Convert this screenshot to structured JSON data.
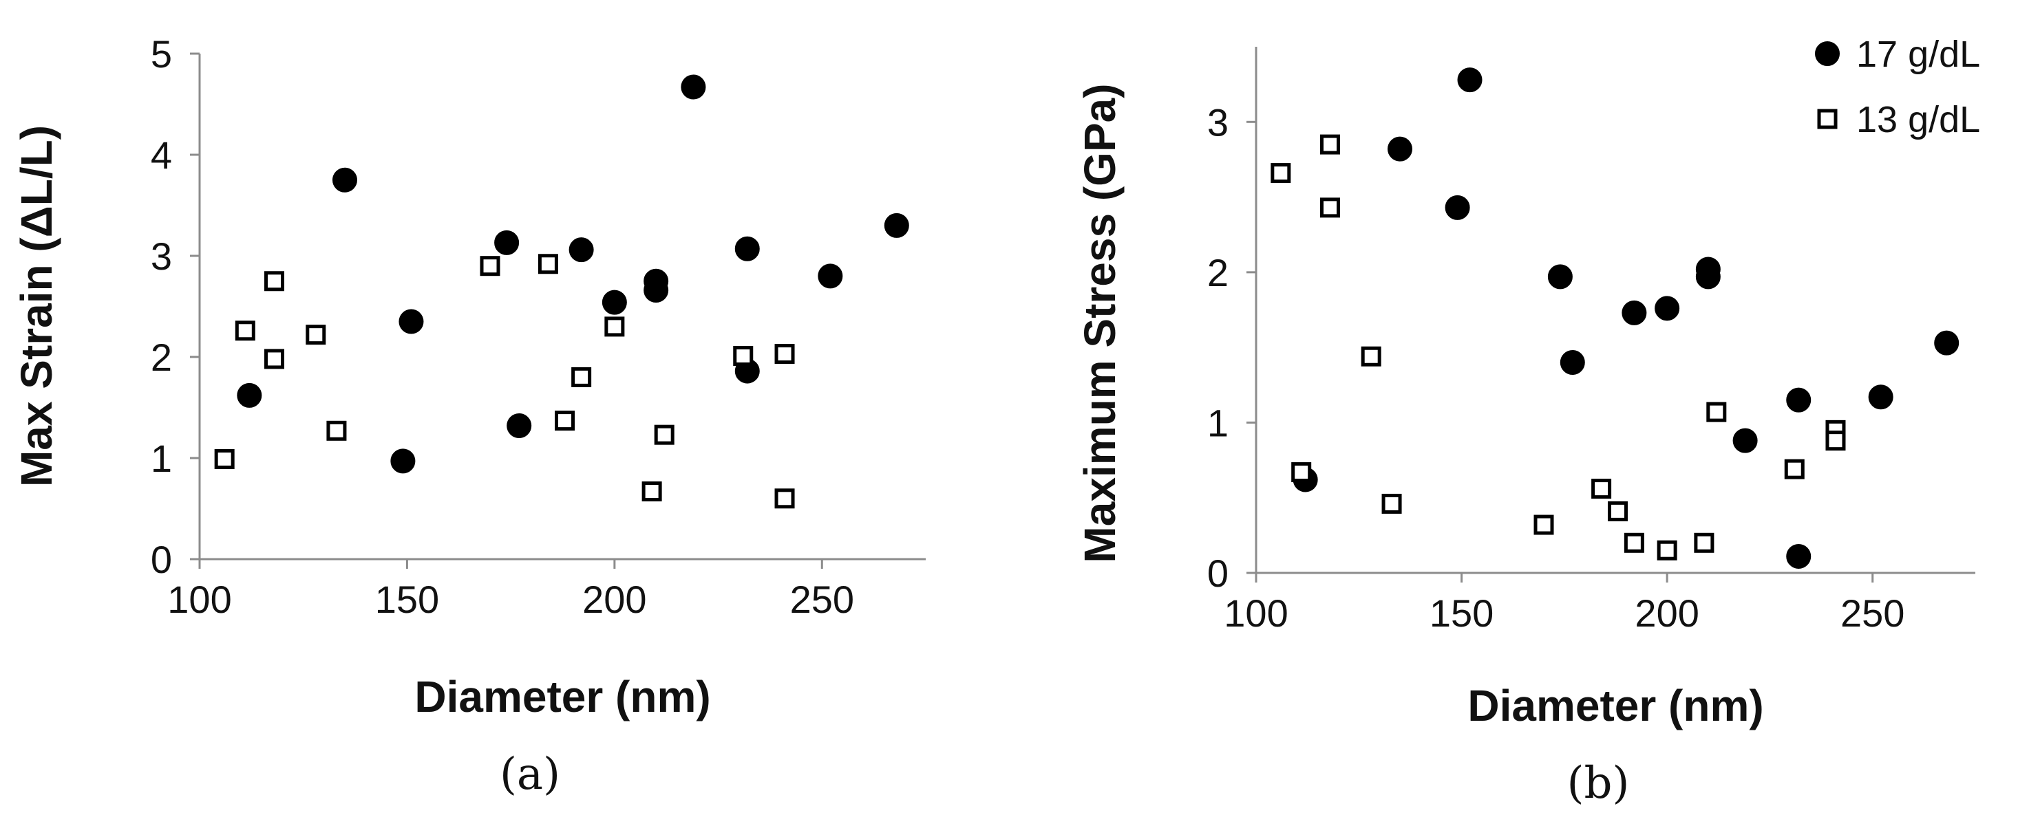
{
  "chart_data": [
    {
      "type": "scatter",
      "xlabel": "Diameter (nm)",
      "ylabel": "Max Strain (ΔL/L)",
      "caption": "(a)",
      "xlim": [
        100,
        275
      ],
      "ylim": [
        0,
        5
      ],
      "xticks": [
        100,
        150,
        200,
        250
      ],
      "yticks": [
        0,
        1,
        2,
        3,
        4,
        5
      ],
      "series": [
        {
          "name": "17 g/dL",
          "marker": "filled-circle",
          "points": [
            [
              112,
              1.62
            ],
            [
              135,
              3.75
            ],
            [
              149,
              0.97
            ],
            [
              151,
              2.35
            ],
            [
              174,
              3.13
            ],
            [
              177,
              1.32
            ],
            [
              192,
              3.06
            ],
            [
              200,
              2.54
            ],
            [
              210,
              2.75
            ],
            [
              210,
              2.66
            ],
            [
              219,
              4.67
            ],
            [
              232,
              1.86
            ],
            [
              232,
              3.07
            ],
            [
              252,
              2.8
            ],
            [
              268,
              3.3
            ]
          ]
        },
        {
          "name": "13 g/dL",
          "marker": "open-square",
          "points": [
            [
              106,
              0.99
            ],
            [
              111,
              2.26
            ],
            [
              118,
              2.75
            ],
            [
              118,
              1.98
            ],
            [
              128,
              2.22
            ],
            [
              133,
              1.27
            ],
            [
              170,
              2.9
            ],
            [
              184,
              2.92
            ],
            [
              188,
              1.37
            ],
            [
              192,
              1.8
            ],
            [
              200,
              2.3
            ],
            [
              209,
              0.67
            ],
            [
              212,
              1.23
            ],
            [
              231,
              2.01
            ],
            [
              241,
              2.03
            ],
            [
              241,
              0.6
            ]
          ]
        }
      ]
    },
    {
      "type": "scatter",
      "xlabel": "Diameter (nm)",
      "ylabel": "Maximum Stress (GPa)",
      "caption": "(b)",
      "xlim": [
        100,
        275
      ],
      "ylim": [
        0,
        3.5
      ],
      "xticks": [
        100,
        150,
        200,
        250
      ],
      "yticks": [
        0,
        1,
        2,
        3
      ],
      "legend_position": "top-right",
      "series": [
        {
          "name": "17 g/dL",
          "marker": "filled-circle",
          "points": [
            [
              112,
              0.62
            ],
            [
              135,
              2.82
            ],
            [
              149,
              2.43
            ],
            [
              152,
              3.28
            ],
            [
              174,
              1.97
            ],
            [
              177,
              1.4
            ],
            [
              192,
              1.73
            ],
            [
              200,
              1.76
            ],
            [
              210,
              2.02
            ],
            [
              210,
              1.97
            ],
            [
              219,
              0.88
            ],
            [
              232,
              1.15
            ],
            [
              232,
              0.11
            ],
            [
              252,
              1.17
            ],
            [
              268,
              1.53
            ]
          ]
        },
        {
          "name": "13 g/dL",
          "marker": "open-square",
          "points": [
            [
              106,
              2.66
            ],
            [
              111,
              0.67
            ],
            [
              118,
              2.85
            ],
            [
              118,
              2.43
            ],
            [
              128,
              1.44
            ],
            [
              133,
              0.46
            ],
            [
              170,
              0.32
            ],
            [
              184,
              0.56
            ],
            [
              188,
              0.41
            ],
            [
              192,
              0.2
            ],
            [
              200,
              0.15
            ],
            [
              209,
              0.2
            ],
            [
              212,
              1.07
            ],
            [
              231,
              0.69
            ],
            [
              241,
              0.95
            ],
            [
              241,
              0.88
            ]
          ]
        }
      ]
    }
  ]
}
